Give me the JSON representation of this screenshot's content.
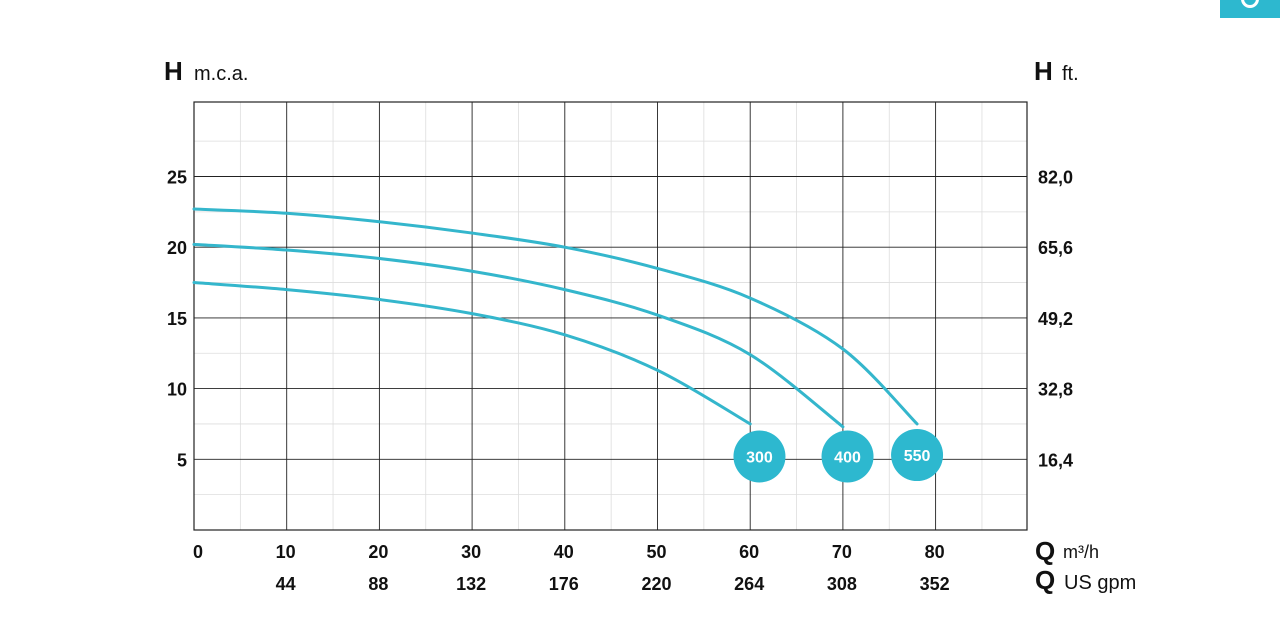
{
  "corner_tab": {
    "color": "#2db8cf",
    "icon": "circle-glyph-icon"
  },
  "chart_data": {
    "type": "line",
    "colors": {
      "curve": "#34b6cc",
      "badge": "#2db8cf",
      "major_grid": "#222222",
      "minor_grid": "#dddddd"
    },
    "grid": true,
    "xlim": [
      0,
      90
    ],
    "ylim": [
      0,
      30
    ],
    "left_axis": {
      "letter": "H",
      "unit": "m.c.a.",
      "ticks": [
        5,
        10,
        15,
        20,
        25
      ]
    },
    "right_axis": {
      "letter": "H",
      "unit": "ft.",
      "ticks": [
        "16,4",
        "32,8",
        "49,2",
        "65,6",
        "82,0"
      ]
    },
    "x_axis_primary": {
      "letter": "Q",
      "unit": "m³/h",
      "ticks": [
        0,
        10,
        20,
        30,
        40,
        50,
        60,
        70,
        80
      ]
    },
    "x_axis_secondary": {
      "letter": "Q",
      "unit": "US gpm",
      "ticks": [
        "44",
        "88",
        "132",
        "176",
        "220",
        "264",
        "308",
        "352"
      ],
      "positions": [
        10,
        20,
        30,
        40,
        50,
        60,
        70,
        80
      ]
    },
    "series": [
      {
        "name": "300",
        "x": [
          0,
          10,
          20,
          30,
          40,
          50,
          60
        ],
        "y": [
          17.5,
          17.0,
          16.3,
          15.3,
          13.8,
          11.3,
          7.5
        ],
        "badge": {
          "x": 61,
          "y": 5.2
        }
      },
      {
        "name": "400",
        "x": [
          0,
          10,
          20,
          30,
          40,
          50,
          60,
          70
        ],
        "y": [
          20.2,
          19.8,
          19.2,
          18.3,
          17.0,
          15.2,
          12.4,
          7.3
        ],
        "badge": {
          "x": 70.5,
          "y": 5.2
        }
      },
      {
        "name": "550",
        "x": [
          0,
          10,
          20,
          30,
          40,
          50,
          60,
          70,
          78
        ],
        "y": [
          22.7,
          22.4,
          21.8,
          21.0,
          20.0,
          18.5,
          16.4,
          12.8,
          7.5
        ],
        "badge": {
          "x": 78,
          "y": 5.3
        }
      }
    ]
  }
}
